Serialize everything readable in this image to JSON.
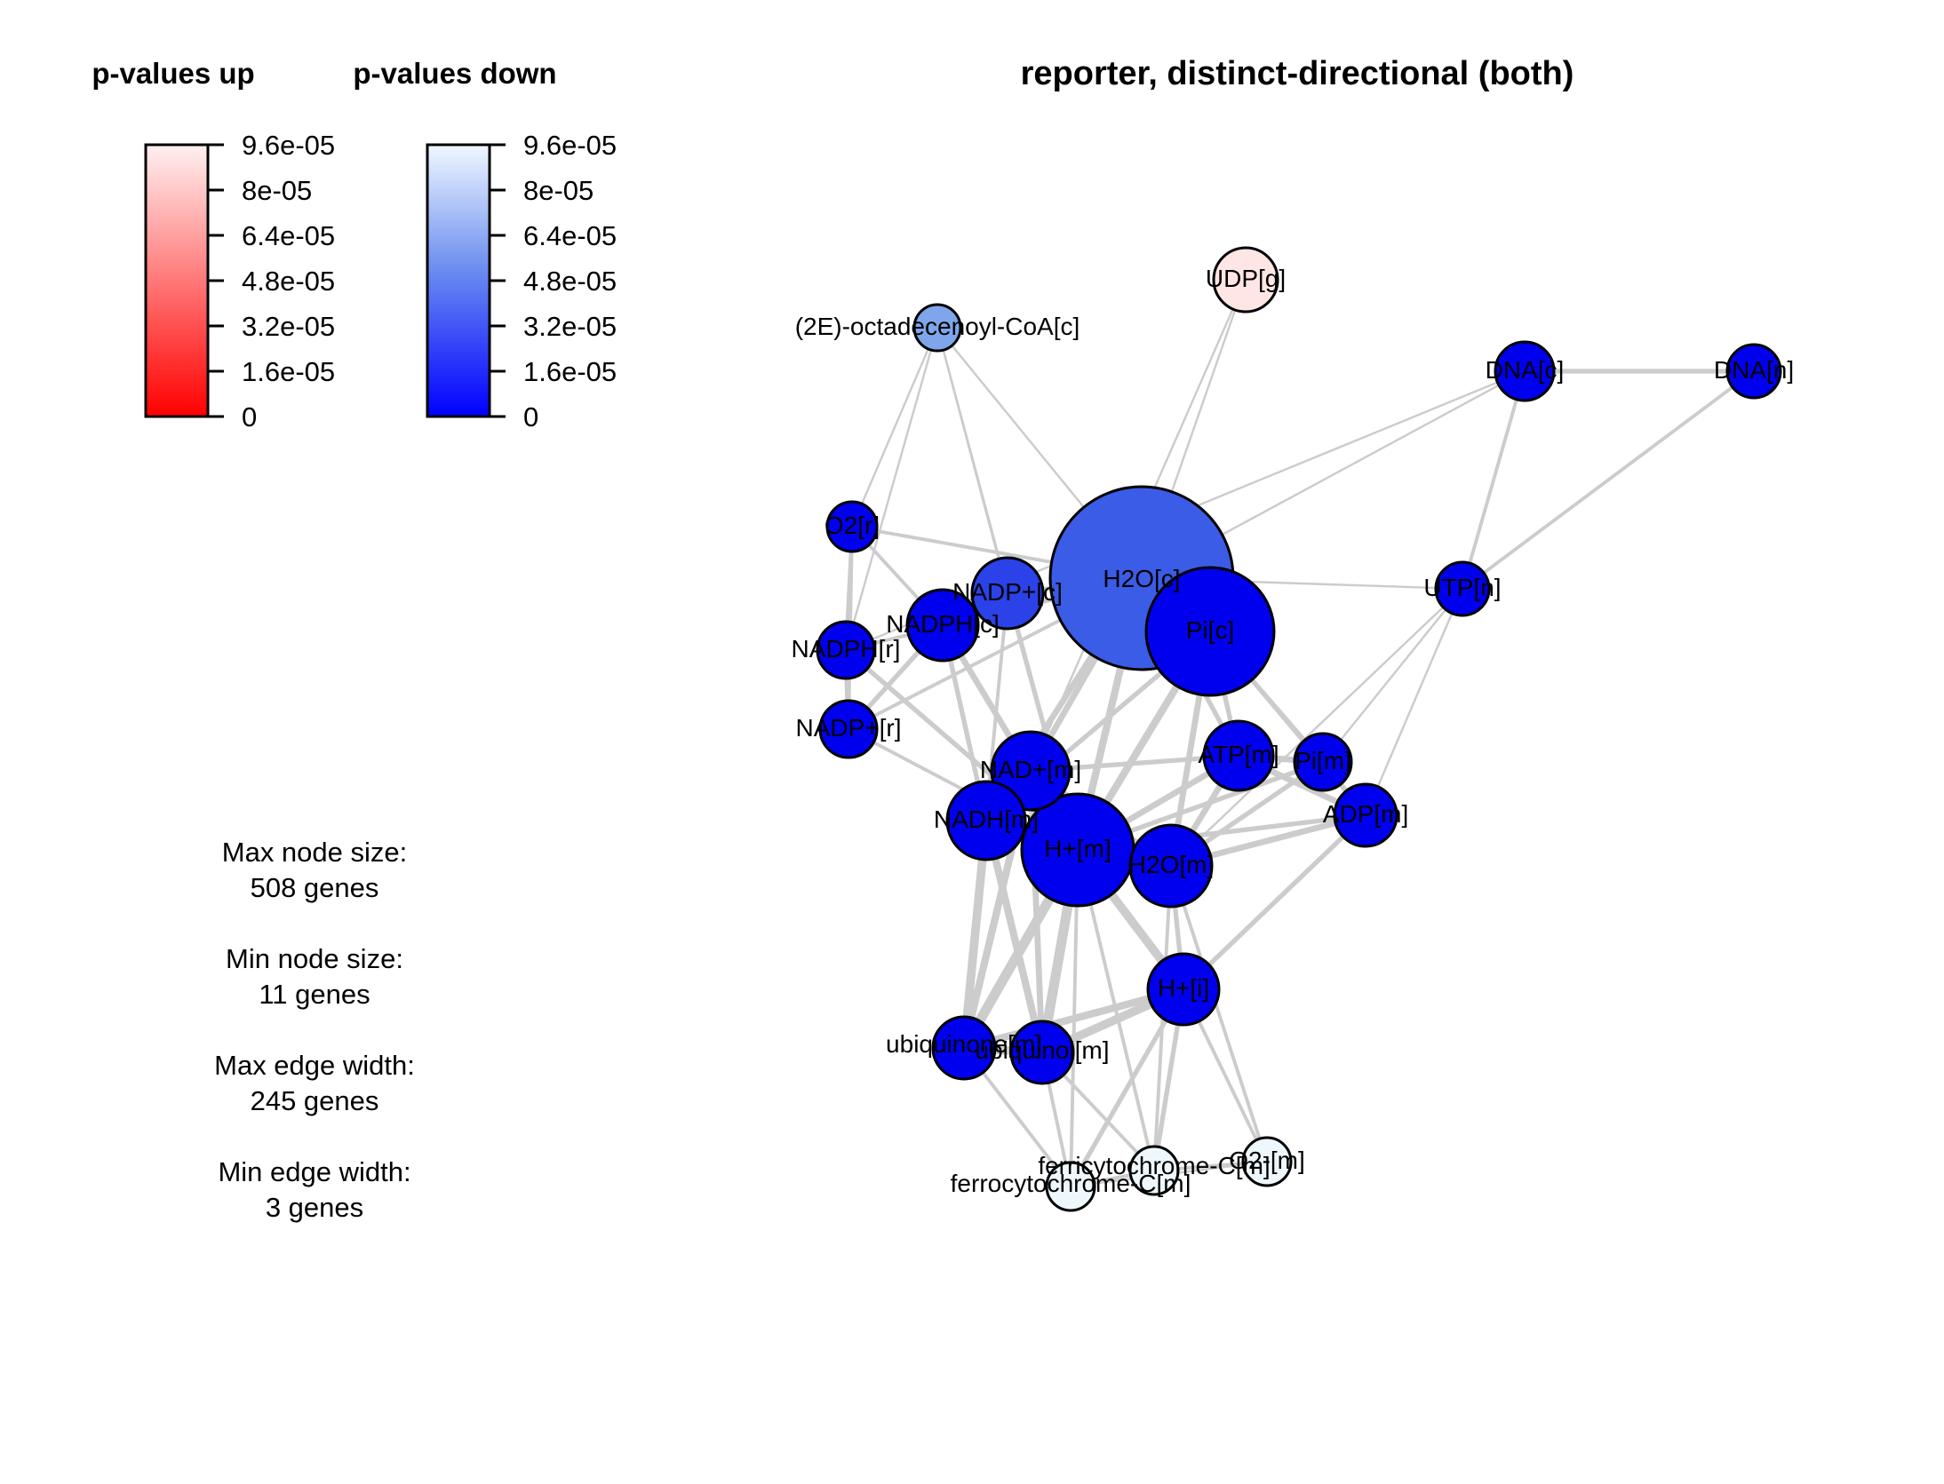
{
  "title": "reporter, distinct-directional (both)",
  "legend_up": {
    "title": "p-values up",
    "ticks": [
      "9.6e-05",
      "8e-05",
      "6.4e-05",
      "4.8e-05",
      "3.2e-05",
      "1.6e-05",
      "0"
    ],
    "color_low": "#ff0000",
    "color_high": "#fff0f0"
  },
  "legend_down": {
    "title": "p-values down",
    "ticks": [
      "9.6e-05",
      "8e-05",
      "6.4e-05",
      "4.8e-05",
      "3.2e-05",
      "1.6e-05",
      "0"
    ],
    "color_low": "#0000ff",
    "color_high": "#f0f8ff"
  },
  "stats": {
    "max_node_label": "Max node size:",
    "max_node_value": "508 genes",
    "min_node_label": "Min node size:",
    "min_node_value": "11 genes",
    "max_edge_label": "Max edge width:",
    "max_edge_value": "245 genes",
    "min_edge_label": "Min edge width:",
    "min_edge_value": "3 genes"
  },
  "colors": {
    "edge": "#cccccc",
    "node_stroke": "#000000",
    "strong_blue": "#0000ee",
    "mid_blue": "#3a5ce6",
    "light_blue": "#7fa6ea",
    "pale_blue": "#eef8fc",
    "pale_red": "#fde6e4"
  },
  "nodes": [
    {
      "id": "udp_g",
      "label": "UDP[g]",
      "color": "#fde6e4"
    },
    {
      "id": "octadecenoyl",
      "label": "(2E)-octadecenoyl-CoA[c]",
      "color": "#7fa6ea"
    },
    {
      "id": "dna_c",
      "label": "DNA[c]",
      "color": "#0000ee"
    },
    {
      "id": "dna_n",
      "label": "DNA[n]",
      "color": "#0000ee"
    },
    {
      "id": "o2_r",
      "label": "O2[r]",
      "color": "#0000ee"
    },
    {
      "id": "h2o_c",
      "label": "H2O[c]",
      "color": "#3a5ce6"
    },
    {
      "id": "nadpp_c",
      "label": "NADP+[c]",
      "color": "#2a42e8"
    },
    {
      "id": "nadph_c",
      "label": "NADPH[c]",
      "color": "#0000ee"
    },
    {
      "id": "pi_c",
      "label": "Pi[c]",
      "color": "#0000ee"
    },
    {
      "id": "utp_n",
      "label": "UTP[n]",
      "color": "#0000ee"
    },
    {
      "id": "nadph_r",
      "label": "NADPH[r]",
      "color": "#0000ee"
    },
    {
      "id": "nadpp_r",
      "label": "NADP+[r]",
      "color": "#0000ee"
    },
    {
      "id": "atp_m",
      "label": "ATP[m]",
      "color": "#0000ee"
    },
    {
      "id": "pi_m",
      "label": "Pi[m]",
      "color": "#0000ee"
    },
    {
      "id": "nadp_m",
      "label": "NAD+[m]",
      "color": "#0000ee"
    },
    {
      "id": "adp_m",
      "label": "ADP[m]",
      "color": "#0000ee"
    },
    {
      "id": "nadh_m",
      "label": "NADH[m]",
      "color": "#0000ee"
    },
    {
      "id": "hp_m",
      "label": "H+[m]",
      "color": "#0000ee"
    },
    {
      "id": "h2o_m",
      "label": "H2O[m]",
      "color": "#0000ee"
    },
    {
      "id": "hp_i",
      "label": "H+[i]",
      "color": "#0000ee"
    },
    {
      "id": "ubiquinone",
      "label": "ubiquinone[m]",
      "color": "#0000ee"
    },
    {
      "id": "ubiquinol",
      "label": "ubiquinol[m]",
      "color": "#0000ee"
    },
    {
      "id": "o2_m",
      "label": "O2-[m]",
      "color": "#eef8fc"
    },
    {
      "id": "ferri",
      "label": "ferricytochrome-C[m]",
      "color": "#eef8fc"
    },
    {
      "id": "ferro",
      "label": "ferrocytochrome-C[m]",
      "color": "#eef8fc"
    }
  ],
  "edges": [
    {
      "source": "dna_c",
      "target": "dna_n",
      "weight": 3
    },
    {
      "source": "dna_n",
      "target": "utp_n",
      "weight": 2
    },
    {
      "source": "dna_c",
      "target": "utp_n",
      "weight": 2
    },
    {
      "source": "dna_c",
      "target": "nadph_r",
      "weight": 1
    },
    {
      "source": "utp_n",
      "target": "h2o_c",
      "weight": 1
    },
    {
      "source": "utp_n",
      "target": "pi_m",
      "weight": 1
    },
    {
      "source": "utp_n",
      "target": "h2o_m",
      "weight": 1
    },
    {
      "source": "utp_n",
      "target": "adp_m",
      "weight": 1
    },
    {
      "source": "dna_c",
      "target": "h2o_c",
      "weight": 1
    },
    {
      "source": "udp_g",
      "target": "h2o_c",
      "weight": 1
    },
    {
      "source": "udp_g",
      "target": "nadp_m",
      "weight": 1
    },
    {
      "source": "octadecenoyl",
      "target": "o2_r",
      "weight": 1
    },
    {
      "source": "octadecenoyl",
      "target": "nadph_r",
      "weight": 1
    },
    {
      "source": "octadecenoyl",
      "target": "nadpp_c",
      "weight": 1
    },
    {
      "source": "octadecenoyl",
      "target": "h2o_c",
      "weight": 1
    },
    {
      "source": "octadecenoyl",
      "target": "hp_m",
      "weight": 1
    },
    {
      "source": "o2_r",
      "target": "nadph_r",
      "weight": 2
    },
    {
      "source": "o2_r",
      "target": "h2o_c",
      "weight": 2
    },
    {
      "source": "o2_r",
      "target": "nadph_c",
      "weight": 2
    },
    {
      "source": "o2_r",
      "target": "nadpp_r",
      "weight": 2
    },
    {
      "source": "nadph_r",
      "target": "nadpp_r",
      "weight": 3
    },
    {
      "source": "nadph_r",
      "target": "h2o_c",
      "weight": 2
    },
    {
      "source": "nadph_r",
      "target": "hp_m",
      "weight": 3
    },
    {
      "source": "nadpp_r",
      "target": "h2o_c",
      "weight": 2
    },
    {
      "source": "nadpp_r",
      "target": "hp_m",
      "weight": 2
    },
    {
      "source": "nadpp_r",
      "target": "nadph_c",
      "weight": 3
    },
    {
      "source": "nadph_c",
      "target": "nadpp_c",
      "weight": 4
    },
    {
      "source": "nadph_c",
      "target": "h2o_c",
      "weight": 3
    },
    {
      "source": "nadph_c",
      "target": "hp_m",
      "weight": 4
    },
    {
      "source": "nadph_c",
      "target": "nadh_m",
      "weight": 3
    },
    {
      "source": "nadpp_c",
      "target": "hp_m",
      "weight": 3
    },
    {
      "source": "nadpp_c",
      "target": "h2o_c",
      "weight": 3
    },
    {
      "source": "nadpp_c",
      "target": "ubiquinone",
      "weight": 2
    },
    {
      "source": "h2o_c",
      "target": "pi_c",
      "weight": 6
    },
    {
      "source": "h2o_c",
      "target": "hp_m",
      "weight": 5
    },
    {
      "source": "h2o_c",
      "target": "nadh_m",
      "weight": 4
    },
    {
      "source": "h2o_c",
      "target": "nadp_m",
      "weight": 4
    },
    {
      "source": "h2o_c",
      "target": "atp_m",
      "weight": 3
    },
    {
      "source": "pi_c",
      "target": "hp_m",
      "weight": 5
    },
    {
      "source": "pi_c",
      "target": "h2o_m",
      "weight": 4
    },
    {
      "source": "pi_c",
      "target": "atp_m",
      "weight": 3
    },
    {
      "source": "pi_c",
      "target": "pi_m",
      "weight": 3
    },
    {
      "source": "pi_c",
      "target": "nadh_m",
      "weight": 3
    },
    {
      "source": "pi_c",
      "target": "adp_m",
      "weight": 2
    },
    {
      "source": "nadp_m",
      "target": "nadh_m",
      "weight": 6
    },
    {
      "source": "nadp_m",
      "target": "hp_m",
      "weight": 6
    },
    {
      "source": "nadp_m",
      "target": "h2o_m",
      "weight": 4
    },
    {
      "source": "nadp_m",
      "target": "ubiquinone",
      "weight": 5
    },
    {
      "source": "nadp_m",
      "target": "ubiquinol",
      "weight": 4
    },
    {
      "source": "nadp_m",
      "target": "atp_m",
      "weight": 3
    },
    {
      "source": "nadh_m",
      "target": "hp_m",
      "weight": 7
    },
    {
      "source": "nadh_m",
      "target": "ubiquinone",
      "weight": 6
    },
    {
      "source": "nadh_m",
      "target": "ubiquinol",
      "weight": 5
    },
    {
      "source": "nadh_m",
      "target": "h2o_m",
      "weight": 4
    },
    {
      "source": "hp_m",
      "target": "h2o_m",
      "weight": 5
    },
    {
      "source": "hp_m",
      "target": "atp_m",
      "weight": 4
    },
    {
      "source": "hp_m",
      "target": "hp_i",
      "weight": 6
    },
    {
      "source": "hp_m",
      "target": "ubiquinone",
      "weight": 7
    },
    {
      "source": "hp_m",
      "target": "ubiquinol",
      "weight": 7
    },
    {
      "source": "hp_m",
      "target": "pi_m",
      "weight": 3
    },
    {
      "source": "hp_m",
      "target": "adp_m",
      "weight": 3
    },
    {
      "source": "hp_m",
      "target": "ferri",
      "weight": 2
    },
    {
      "source": "hp_m",
      "target": "ferro",
      "weight": 2
    },
    {
      "source": "h2o_m",
      "target": "atp_m",
      "weight": 4
    },
    {
      "source": "h2o_m",
      "target": "pi_m",
      "weight": 3
    },
    {
      "source": "h2o_m",
      "target": "adp_m",
      "weight": 4
    },
    {
      "source": "h2o_m",
      "target": "hp_i",
      "weight": 3
    },
    {
      "source": "h2o_m",
      "target": "ferri",
      "weight": 2
    },
    {
      "source": "h2o_m",
      "target": "o2_m",
      "weight": 2
    },
    {
      "source": "atp_m",
      "target": "pi_m",
      "weight": 4
    },
    {
      "source": "atp_m",
      "target": "adp_m",
      "weight": 4
    },
    {
      "source": "pi_m",
      "target": "adp_m",
      "weight": 3
    },
    {
      "source": "adp_m",
      "target": "hp_i",
      "weight": 3
    },
    {
      "source": "hp_i",
      "target": "ubiquinone",
      "weight": 5
    },
    {
      "source": "hp_i",
      "target": "ubiquinol",
      "weight": 6
    },
    {
      "source": "hp_i",
      "target": "ferri",
      "weight": 3
    },
    {
      "source": "hp_i",
      "target": "ferro",
      "weight": 3
    },
    {
      "source": "hp_i",
      "target": "o2_m",
      "weight": 2
    },
    {
      "source": "ubiquinone",
      "target": "ubiquinol",
      "weight": 6
    },
    {
      "source": "ubiquinone",
      "target": "ferro",
      "weight": 2
    },
    {
      "source": "ubiquinol",
      "target": "ferri",
      "weight": 2
    },
    {
      "source": "ubiquinol",
      "target": "ferro",
      "weight": 2
    },
    {
      "source": "ferri",
      "target": "ferro",
      "weight": 2
    },
    {
      "source": "ferri",
      "target": "o2_m",
      "weight": 2
    },
    {
      "source": "ferro",
      "target": "o2_m",
      "weight": 1
    }
  ]
}
